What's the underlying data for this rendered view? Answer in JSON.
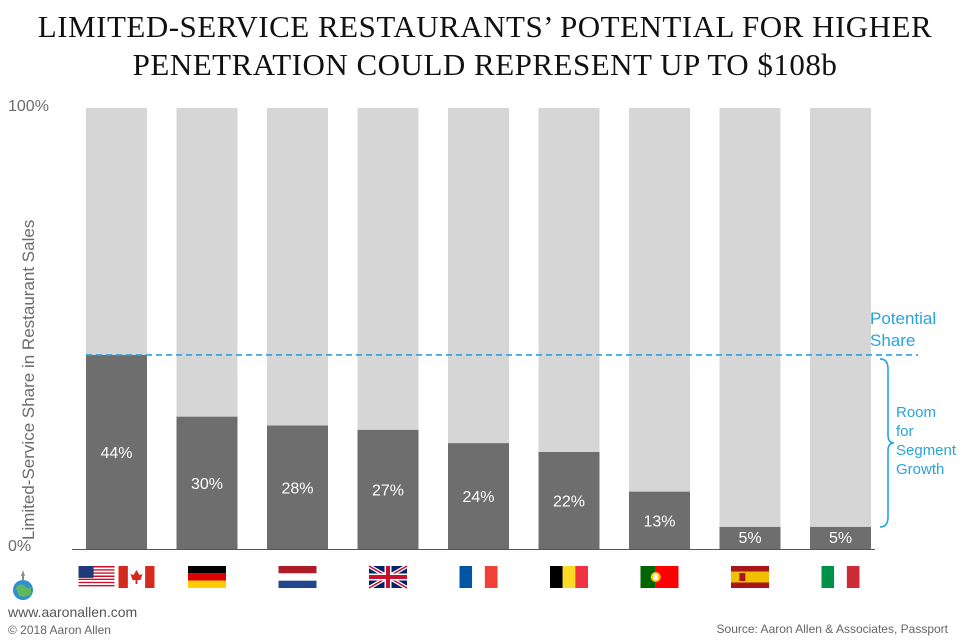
{
  "title_line1": "LIMITED-SERVICE RESTAURANTS’ POTENTIAL FOR HIGHER",
  "title_line2": "PENETRATION COULD REPRESENT UP TO $108b",
  "annotations": {
    "potential_line1": "Potential",
    "potential_line2": "Share",
    "room_lines": [
      "Room",
      "for",
      "Segment",
      "Growth"
    ]
  },
  "footer": {
    "site": "www.aaronallen.com",
    "copyright": "© 2018 Aaron Allen",
    "source": "Source: Aaron Allen & Associates, Passport"
  },
  "colors": {
    "bar_fill": "#6e6e6e",
    "bar_background": "#d6d6d6",
    "accent": "#29a3dc"
  },
  "chart_data": {
    "type": "bar",
    "stacked_to_100": true,
    "ylabel": "Limited-Service Share in Restaurant Sales",
    "ylim": [
      0,
      100
    ],
    "yticks": [
      "0%",
      "100%"
    ],
    "potential_share": 44,
    "categories": [
      "United States & Canada",
      "Germany",
      "Netherlands",
      "United Kingdom",
      "France",
      "Belgium",
      "Portugal",
      "Spain",
      "Italy"
    ],
    "flags": [
      [
        "us",
        "ca"
      ],
      [
        "de"
      ],
      [
        "nl"
      ],
      [
        "gb"
      ],
      [
        "fr"
      ],
      [
        "be"
      ],
      [
        "pt"
      ],
      [
        "es"
      ],
      [
        "it"
      ]
    ],
    "values": [
      44,
      30,
      28,
      27,
      24,
      22,
      13,
      5,
      5
    ],
    "value_labels": [
      "44%",
      "30%",
      "28%",
      "27%",
      "24%",
      "22%",
      "13%",
      "5%",
      "5%"
    ]
  }
}
